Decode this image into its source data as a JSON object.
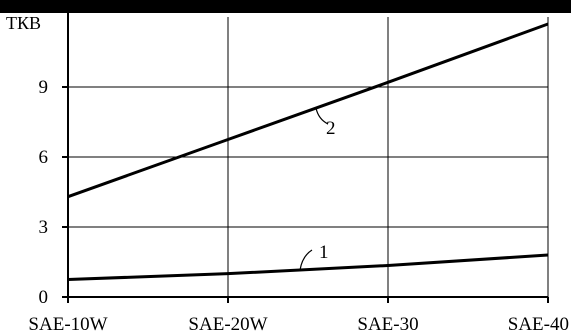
{
  "chart_data": {
    "type": "line",
    "title": "",
    "xlabel": "",
    "ylabel": "ТКВ",
    "categories": [
      "SAE-10W",
      "SAE-20W",
      "SAE-30",
      "SAE-40"
    ],
    "ylim": [
      0,
      12
    ],
    "yticks": [
      0,
      3,
      6,
      9
    ],
    "grid": true,
    "series": [
      {
        "name": "1",
        "values": [
          0.75,
          1.0,
          1.35,
          1.8
        ]
      },
      {
        "name": "2",
        "values": [
          4.3,
          6.75,
          9.2,
          11.7
        ]
      }
    ],
    "colors": {
      "line": "#000000",
      "grid": "#000000",
      "background": "#ffffff",
      "top_bar": "#000000"
    }
  }
}
